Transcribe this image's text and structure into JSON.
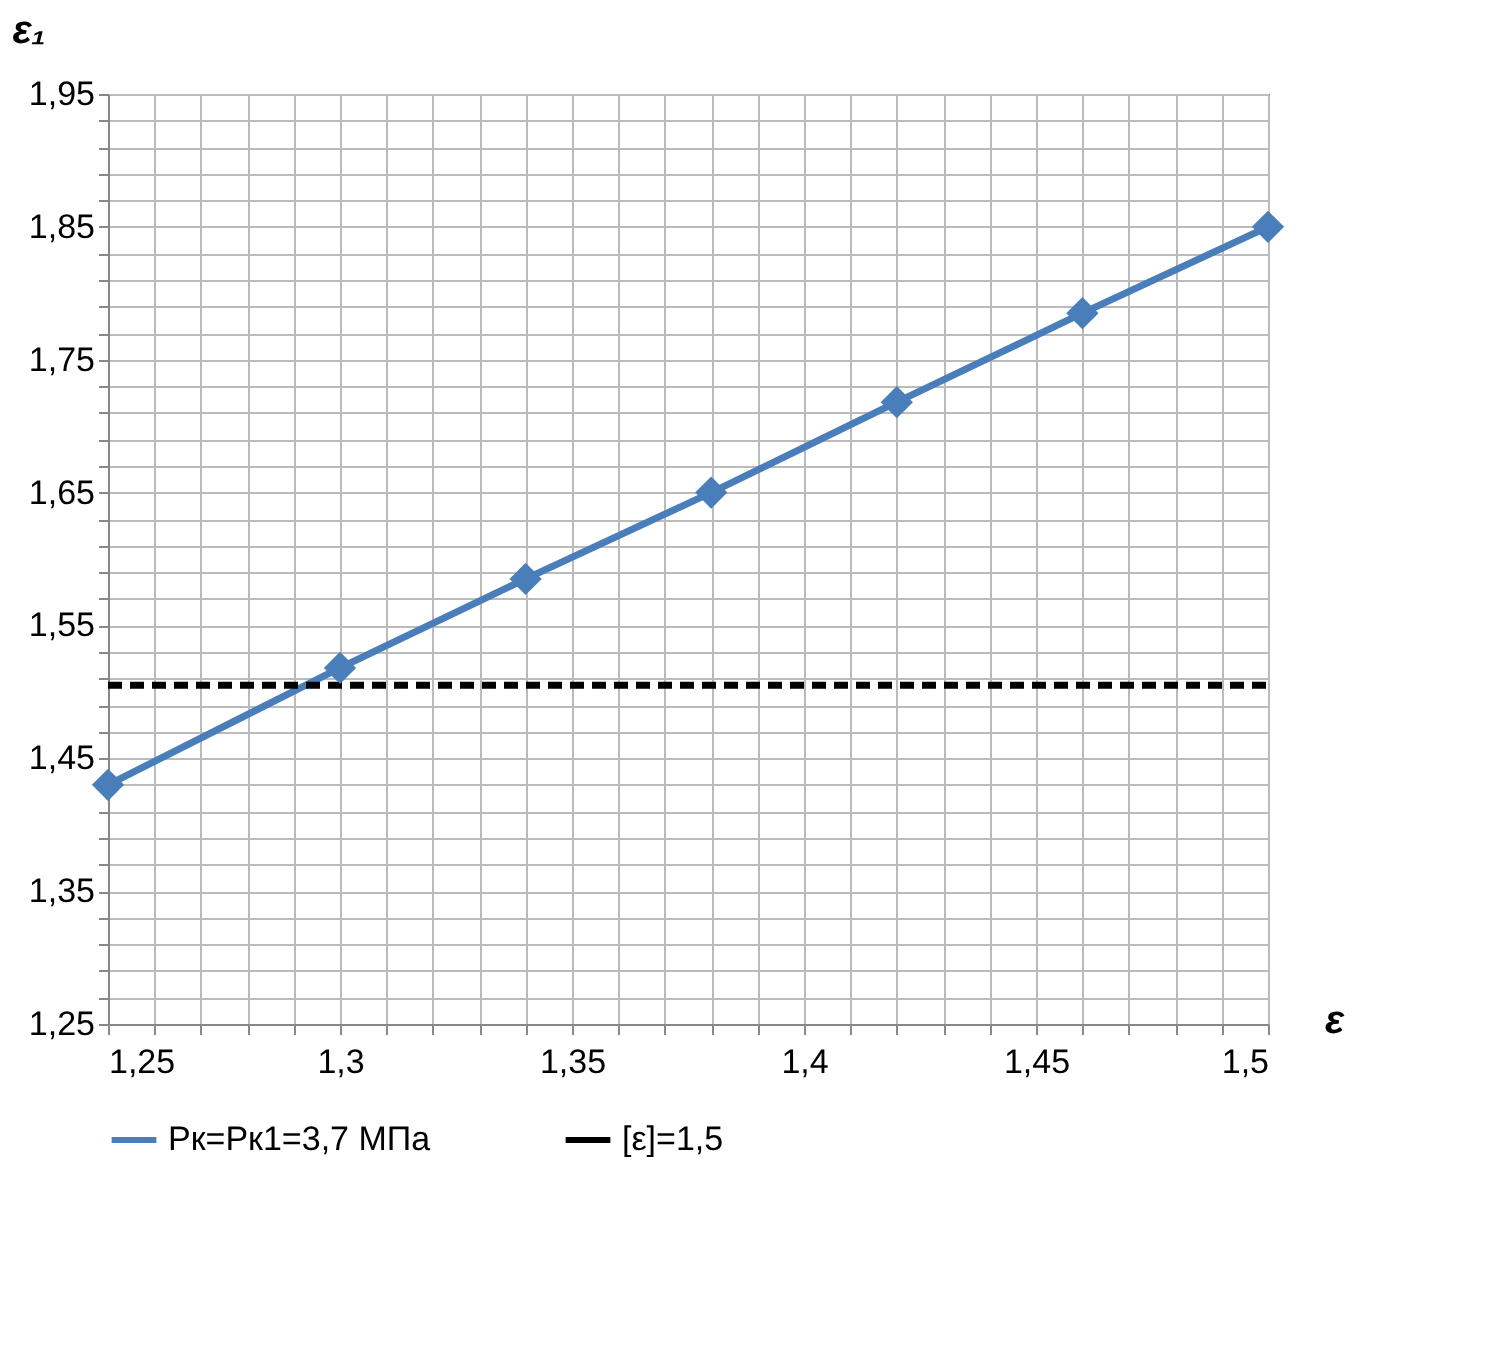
{
  "chart_data": {
    "type": "line",
    "xlabel": "ε",
    "ylabel": "ε₁",
    "x": [
      1.25,
      1.3,
      1.34,
      1.38,
      1.42,
      1.46,
      1.5
    ],
    "series": [
      {
        "name": "Рк=Рк1=3,7 МПа",
        "color": "#4a7ebb",
        "values": [
          1.43,
          1.518,
          1.585,
          1.65,
          1.718,
          1.785,
          1.85
        ],
        "marker": "diamond",
        "line_style": "solid"
      },
      {
        "name": "[ε]=1,5",
        "color": "#000000",
        "x": [
          1.25,
          1.5
        ],
        "values": [
          1.505,
          1.505
        ],
        "marker": "none",
        "line_style": "dashed"
      }
    ],
    "xlim": [
      1.25,
      1.5
    ],
    "ylim": [
      1.25,
      1.95
    ],
    "xticks": [
      {
        "value": 1.25,
        "label": "1,25"
      },
      {
        "value": 1.26,
        "label": null
      },
      {
        "value": 1.27,
        "label": null
      },
      {
        "value": 1.28,
        "label": null
      },
      {
        "value": 1.29,
        "label": null
      },
      {
        "value": 1.3,
        "label": "1,3"
      },
      {
        "value": 1.31,
        "label": null
      },
      {
        "value": 1.32,
        "label": null
      },
      {
        "value": 1.33,
        "label": null
      },
      {
        "value": 1.34,
        "label": null
      },
      {
        "value": 1.35,
        "label": "1,35"
      },
      {
        "value": 1.36,
        "label": null
      },
      {
        "value": 1.37,
        "label": null
      },
      {
        "value": 1.38,
        "label": null
      },
      {
        "value": 1.39,
        "label": null
      },
      {
        "value": 1.4,
        "label": "1,4"
      },
      {
        "value": 1.41,
        "label": null
      },
      {
        "value": 1.42,
        "label": null
      },
      {
        "value": 1.43,
        "label": null
      },
      {
        "value": 1.44,
        "label": null
      },
      {
        "value": 1.45,
        "label": "1,45"
      },
      {
        "value": 1.46,
        "label": null
      },
      {
        "value": 1.47,
        "label": null
      },
      {
        "value": 1.48,
        "label": null
      },
      {
        "value": 1.49,
        "label": null
      },
      {
        "value": 1.5,
        "label": "1,5"
      }
    ],
    "yticks": [
      {
        "value": 1.25,
        "label": "1,25"
      },
      {
        "value": 1.27,
        "label": null
      },
      {
        "value": 1.29,
        "label": null
      },
      {
        "value": 1.31,
        "label": null
      },
      {
        "value": 1.33,
        "label": null
      },
      {
        "value": 1.35,
        "label": "1,35"
      },
      {
        "value": 1.37,
        "label": null
      },
      {
        "value": 1.39,
        "label": null
      },
      {
        "value": 1.41,
        "label": null
      },
      {
        "value": 1.43,
        "label": null
      },
      {
        "value": 1.45,
        "label": "1,45"
      },
      {
        "value": 1.47,
        "label": null
      },
      {
        "value": 1.49,
        "label": null
      },
      {
        "value": 1.51,
        "label": null
      },
      {
        "value": 1.53,
        "label": null
      },
      {
        "value": 1.55,
        "label": "1,55"
      },
      {
        "value": 1.57,
        "label": null
      },
      {
        "value": 1.59,
        "label": null
      },
      {
        "value": 1.61,
        "label": null
      },
      {
        "value": 1.63,
        "label": null
      },
      {
        "value": 1.65,
        "label": "1,65"
      },
      {
        "value": 1.67,
        "label": null
      },
      {
        "value": 1.69,
        "label": null
      },
      {
        "value": 1.71,
        "label": null
      },
      {
        "value": 1.73,
        "label": null
      },
      {
        "value": 1.75,
        "label": "1,75"
      },
      {
        "value": 1.77,
        "label": null
      },
      {
        "value": 1.79,
        "label": null
      },
      {
        "value": 1.81,
        "label": null
      },
      {
        "value": 1.83,
        "label": null
      },
      {
        "value": 1.85,
        "label": "1,85"
      },
      {
        "value": 1.87,
        "label": null
      },
      {
        "value": 1.89,
        "label": null
      },
      {
        "value": 1.91,
        "label": null
      },
      {
        "value": 1.93,
        "label": null
      },
      {
        "value": 1.95,
        "label": "1,95"
      }
    ],
    "grid": true,
    "legend": "bottom"
  }
}
